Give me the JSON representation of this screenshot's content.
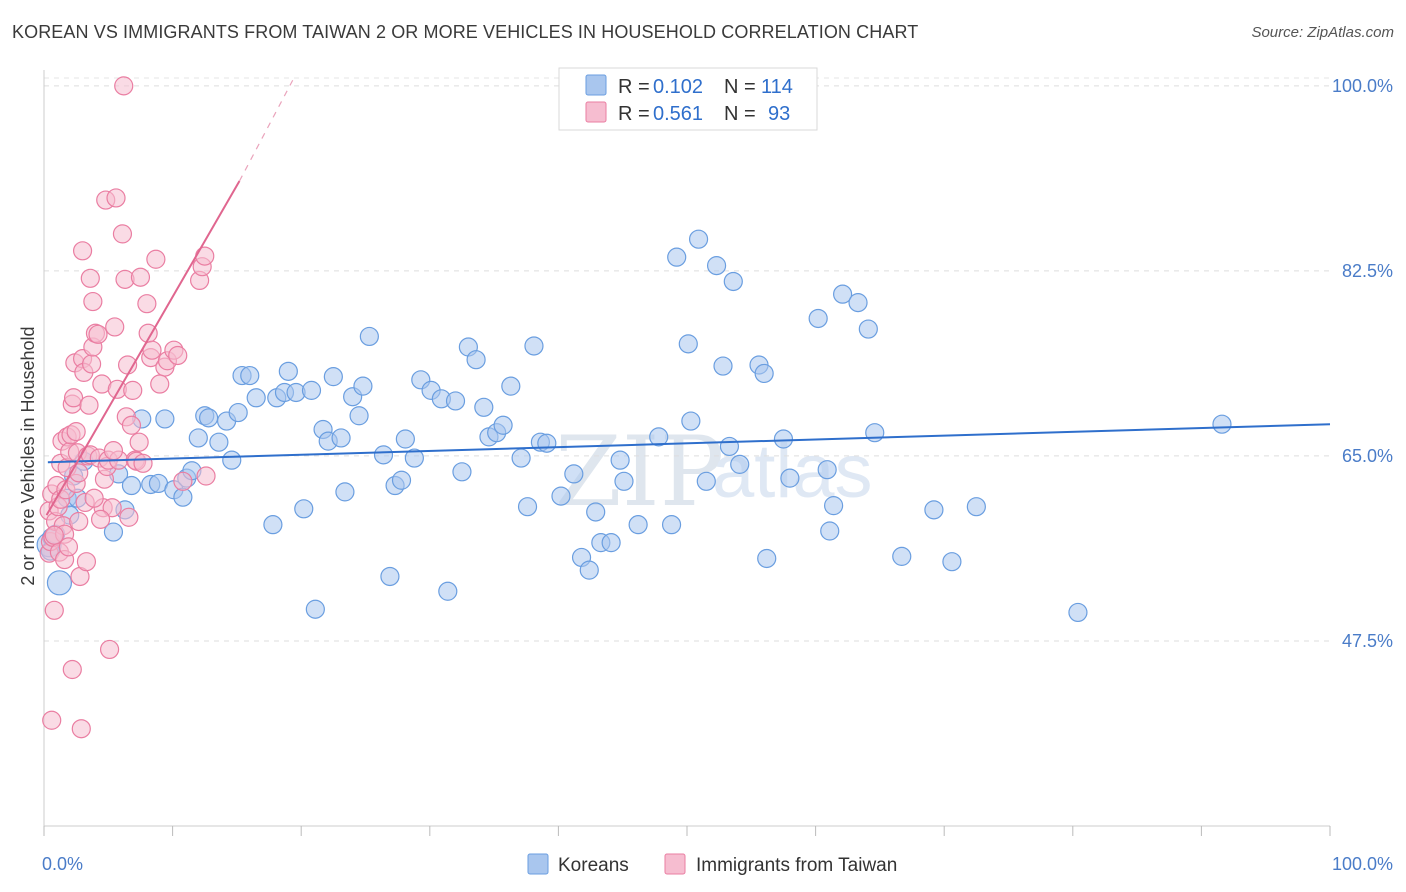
{
  "title": "KOREAN VS IMMIGRANTS FROM TAIWAN 2 OR MORE VEHICLES IN HOUSEHOLD CORRELATION CHART",
  "source": "Source: ZipAtlas.com",
  "watermark": {
    "zip": "ZIP",
    "atlas": "atlas"
  },
  "legend": [
    {
      "r_label": "R =",
      "r_value": "0.102",
      "n_label": "N =",
      "n_value": "114",
      "color": "#8fb5e8"
    },
    {
      "r_label": "R =",
      "r_value": "0.561",
      "n_label": "N =",
      "n_value": "93",
      "color": "#f0a6bf"
    }
  ],
  "chart_data": {
    "type": "scatter",
    "ylabel": "2 or more Vehicles in Household",
    "xlim": [
      0,
      100
    ],
    "ylim": [
      30,
      101.5
    ],
    "x_tick_labels": [
      {
        "value": 0,
        "label": "0.0%"
      },
      {
        "value": 100,
        "label": "100.0%"
      }
    ],
    "y_tick_labels": [
      {
        "value": 100,
        "label": "100.0%"
      },
      {
        "value": 82.5,
        "label": "82.5%"
      },
      {
        "value": 65,
        "label": "65.0%"
      },
      {
        "value": 47.5,
        "label": "47.5%"
      }
    ],
    "grid": true,
    "series": [
      {
        "name": "Koreans",
        "color": "#6a9ee0",
        "fill": "#a9c6ee",
        "trend": {
          "x0": 0.3,
          "y0": 64.4,
          "x1": 100,
          "y1": 68.0
        },
        "points": [
          [
            0.4,
            56.6
          ],
          [
            0.6,
            57.3
          ],
          [
            0.9,
            57.6
          ],
          [
            1.2,
            53.0
          ],
          [
            1.8,
            61.0
          ],
          [
            2.0,
            59.4
          ],
          [
            2.3,
            63.1
          ],
          [
            2.6,
            61.0
          ],
          [
            3.1,
            64.5
          ],
          [
            5.4,
            57.8
          ],
          [
            5.8,
            63.3
          ],
          [
            6.3,
            59.9
          ],
          [
            6.8,
            62.2
          ],
          [
            7.6,
            68.5
          ],
          [
            8.3,
            62.3
          ],
          [
            8.9,
            62.4
          ],
          [
            9.4,
            68.5
          ],
          [
            10.1,
            61.8
          ],
          [
            10.8,
            61.1
          ],
          [
            11.1,
            62.9
          ],
          [
            11.5,
            63.6
          ],
          [
            12.0,
            66.7
          ],
          [
            12.5,
            68.8
          ],
          [
            12.8,
            68.6
          ],
          [
            13.6,
            66.3
          ],
          [
            14.2,
            68.3
          ],
          [
            14.6,
            64.6
          ],
          [
            15.1,
            69.1
          ],
          [
            15.4,
            72.6
          ],
          [
            16.0,
            72.6
          ],
          [
            16.5,
            70.5
          ],
          [
            17.8,
            58.5
          ],
          [
            18.1,
            70.5
          ],
          [
            18.7,
            71.0
          ],
          [
            19.0,
            73.0
          ],
          [
            19.6,
            71.0
          ],
          [
            20.2,
            60.0
          ],
          [
            20.8,
            71.2
          ],
          [
            21.1,
            50.5
          ],
          [
            21.7,
            67.5
          ],
          [
            22.1,
            66.4
          ],
          [
            22.5,
            72.5
          ],
          [
            23.1,
            66.7
          ],
          [
            23.4,
            61.6
          ],
          [
            24.0,
            70.6
          ],
          [
            24.5,
            68.8
          ],
          [
            24.8,
            71.6
          ],
          [
            25.3,
            76.3
          ],
          [
            26.4,
            65.1
          ],
          [
            26.9,
            53.6
          ],
          [
            27.3,
            62.2
          ],
          [
            27.8,
            62.7
          ],
          [
            28.1,
            66.6
          ],
          [
            28.8,
            64.8
          ],
          [
            29.3,
            72.2
          ],
          [
            30.1,
            71.2
          ],
          [
            30.9,
            70.4
          ],
          [
            31.4,
            52.2
          ],
          [
            32.0,
            70.2
          ],
          [
            32.5,
            63.5
          ],
          [
            33.0,
            75.3
          ],
          [
            33.6,
            74.1
          ],
          [
            34.2,
            69.6
          ],
          [
            34.6,
            66.8
          ],
          [
            35.2,
            67.2
          ],
          [
            35.7,
            67.9
          ],
          [
            36.3,
            71.6
          ],
          [
            37.1,
            64.8
          ],
          [
            37.6,
            60.2
          ],
          [
            38.1,
            75.4
          ],
          [
            38.6,
            66.3
          ],
          [
            39.1,
            66.2
          ],
          [
            40.2,
            61.2
          ],
          [
            41.2,
            63.3
          ],
          [
            41.8,
            55.4
          ],
          [
            42.4,
            54.2
          ],
          [
            42.9,
            59.7
          ],
          [
            43.3,
            56.8
          ],
          [
            44.1,
            56.8
          ],
          [
            44.8,
            64.6
          ],
          [
            45.1,
            62.6
          ],
          [
            46.2,
            58.5
          ],
          [
            47.8,
            66.8
          ],
          [
            48.8,
            58.5
          ],
          [
            49.2,
            83.8
          ],
          [
            50.1,
            75.6
          ],
          [
            50.3,
            68.3
          ],
          [
            50.9,
            85.5
          ],
          [
            51.5,
            62.6
          ],
          [
            52.3,
            83.0
          ],
          [
            52.8,
            73.5
          ],
          [
            53.3,
            65.9
          ],
          [
            53.6,
            81.5
          ],
          [
            54.1,
            64.2
          ],
          [
            55.6,
            73.6
          ],
          [
            56.0,
            72.8
          ],
          [
            56.2,
            55.3
          ],
          [
            57.5,
            66.6
          ],
          [
            58.0,
            62.9
          ],
          [
            60.2,
            78.0
          ],
          [
            60.9,
            63.7
          ],
          [
            61.1,
            57.9
          ],
          [
            61.4,
            60.3
          ],
          [
            62.1,
            80.3
          ],
          [
            63.3,
            79.5
          ],
          [
            64.1,
            77.0
          ],
          [
            64.6,
            67.2
          ],
          [
            66.7,
            55.5
          ],
          [
            69.2,
            59.9
          ],
          [
            70.6,
            55.0
          ],
          [
            72.5,
            60.2
          ],
          [
            80.4,
            50.2
          ],
          [
            91.6,
            68.0
          ],
          [
            0.5,
            56.0
          ]
        ]
      },
      {
        "name": "Immigrants from Taiwan",
        "color": "#ea7ea2",
        "fill": "#f6bdd0",
        "trend": {
          "x0": 0.2,
          "y0": 59.4,
          "x1": 15.2,
          "y1": 91.0
        },
        "trend_dash": {
          "x0": 15.2,
          "y0": 91.0,
          "x1": 19.5,
          "y1": 100.9
        },
        "points": [
          [
            0.4,
            59.8
          ],
          [
            0.4,
            55.8
          ],
          [
            0.5,
            56.9
          ],
          [
            0.6,
            40.0
          ],
          [
            0.6,
            61.4
          ],
          [
            0.7,
            57.3
          ],
          [
            0.8,
            50.4
          ],
          [
            0.9,
            58.8
          ],
          [
            1.0,
            62.2
          ],
          [
            1.1,
            60.2
          ],
          [
            1.2,
            55.9
          ],
          [
            1.3,
            60.9
          ],
          [
            1.3,
            64.3
          ],
          [
            1.4,
            66.4
          ],
          [
            1.5,
            58.4
          ],
          [
            1.6,
            55.2
          ],
          [
            1.7,
            61.8
          ],
          [
            1.8,
            63.9
          ],
          [
            1.8,
            66.8
          ],
          [
            2.0,
            65.4
          ],
          [
            2.1,
            67.0
          ],
          [
            2.2,
            69.9
          ],
          [
            2.2,
            44.8
          ],
          [
            2.3,
            70.5
          ],
          [
            2.4,
            73.8
          ],
          [
            2.5,
            62.4
          ],
          [
            2.5,
            67.3
          ],
          [
            2.6,
            65.3
          ],
          [
            2.7,
            58.8
          ],
          [
            2.8,
            53.6
          ],
          [
            2.9,
            39.2
          ],
          [
            3.0,
            74.2
          ],
          [
            3.0,
            84.4
          ],
          [
            3.1,
            72.9
          ],
          [
            3.2,
            60.6
          ],
          [
            3.3,
            55.0
          ],
          [
            3.4,
            65.0
          ],
          [
            3.5,
            69.8
          ],
          [
            3.6,
            65.1
          ],
          [
            3.6,
            81.8
          ],
          [
            3.7,
            73.7
          ],
          [
            3.8,
            75.3
          ],
          [
            3.8,
            79.6
          ],
          [
            4.0,
            76.6
          ],
          [
            4.2,
            76.5
          ],
          [
            4.3,
            64.8
          ],
          [
            4.5,
            71.8
          ],
          [
            4.6,
            60.1
          ],
          [
            4.7,
            62.8
          ],
          [
            4.8,
            89.2
          ],
          [
            4.9,
            64.0
          ],
          [
            5.0,
            64.6
          ],
          [
            5.1,
            46.7
          ],
          [
            5.3,
            60.1
          ],
          [
            5.5,
            77.2
          ],
          [
            5.6,
            89.4
          ],
          [
            5.7,
            71.3
          ],
          [
            5.8,
            64.6
          ],
          [
            6.1,
            86.0
          ],
          [
            6.2,
            100.0
          ],
          [
            6.3,
            81.7
          ],
          [
            6.4,
            68.7
          ],
          [
            6.5,
            73.6
          ],
          [
            6.6,
            59.2
          ],
          [
            6.9,
            71.2
          ],
          [
            7.1,
            64.6
          ],
          [
            7.2,
            64.5
          ],
          [
            7.5,
            81.9
          ],
          [
            7.7,
            64.3
          ],
          [
            8.0,
            79.4
          ],
          [
            8.1,
            76.6
          ],
          [
            8.3,
            74.3
          ],
          [
            8.4,
            75.0
          ],
          [
            8.7,
            83.6
          ],
          [
            9.4,
            73.4
          ],
          [
            9.6,
            74.0
          ],
          [
            10.1,
            75.0
          ],
          [
            10.4,
            74.5
          ],
          [
            10.8,
            62.6
          ],
          [
            12.1,
            81.6
          ],
          [
            12.3,
            82.9
          ],
          [
            12.5,
            83.9
          ],
          [
            12.6,
            63.1
          ],
          [
            6.8,
            67.9
          ],
          [
            7.4,
            66.3
          ],
          [
            1.6,
            57.6
          ],
          [
            2.7,
            63.4
          ],
          [
            3.9,
            61.0
          ],
          [
            5.4,
            65.5
          ],
          [
            0.8,
            57.5
          ],
          [
            1.9,
            56.4
          ],
          [
            4.4,
            59.0
          ],
          [
            9.0,
            71.8
          ]
        ]
      }
    ]
  }
}
